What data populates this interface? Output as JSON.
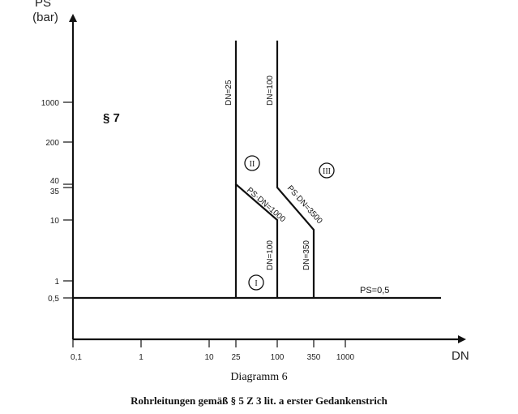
{
  "y_axis": {
    "label_line1": "PS",
    "label_line2": "(bar)",
    "ticks": [
      "1000",
      "200",
      "40",
      "35",
      "10",
      "1",
      "0,5"
    ]
  },
  "x_axis": {
    "label": "DN",
    "ticks": [
      "0,1",
      "1",
      "10",
      "25",
      "100",
      "350",
      "1000"
    ]
  },
  "regions": {
    "section": "§ 7",
    "category_1": "I",
    "category_2": "II",
    "category_3": "III"
  },
  "boundary_labels": {
    "dn25": "DN=25",
    "dn100_upper": "DN=100",
    "dn100_lower": "DN=100",
    "dn350": "DN=350",
    "psdn1000": "PS·DN=1000",
    "psdn3500": "PS·DN=3500",
    "ps05": "PS=0,5"
  },
  "caption": {
    "number": "Diagramm 6",
    "title": "Rohrleitungen gemäß § 5 Z 3 lit. a erster Gedankenstrich"
  }
}
